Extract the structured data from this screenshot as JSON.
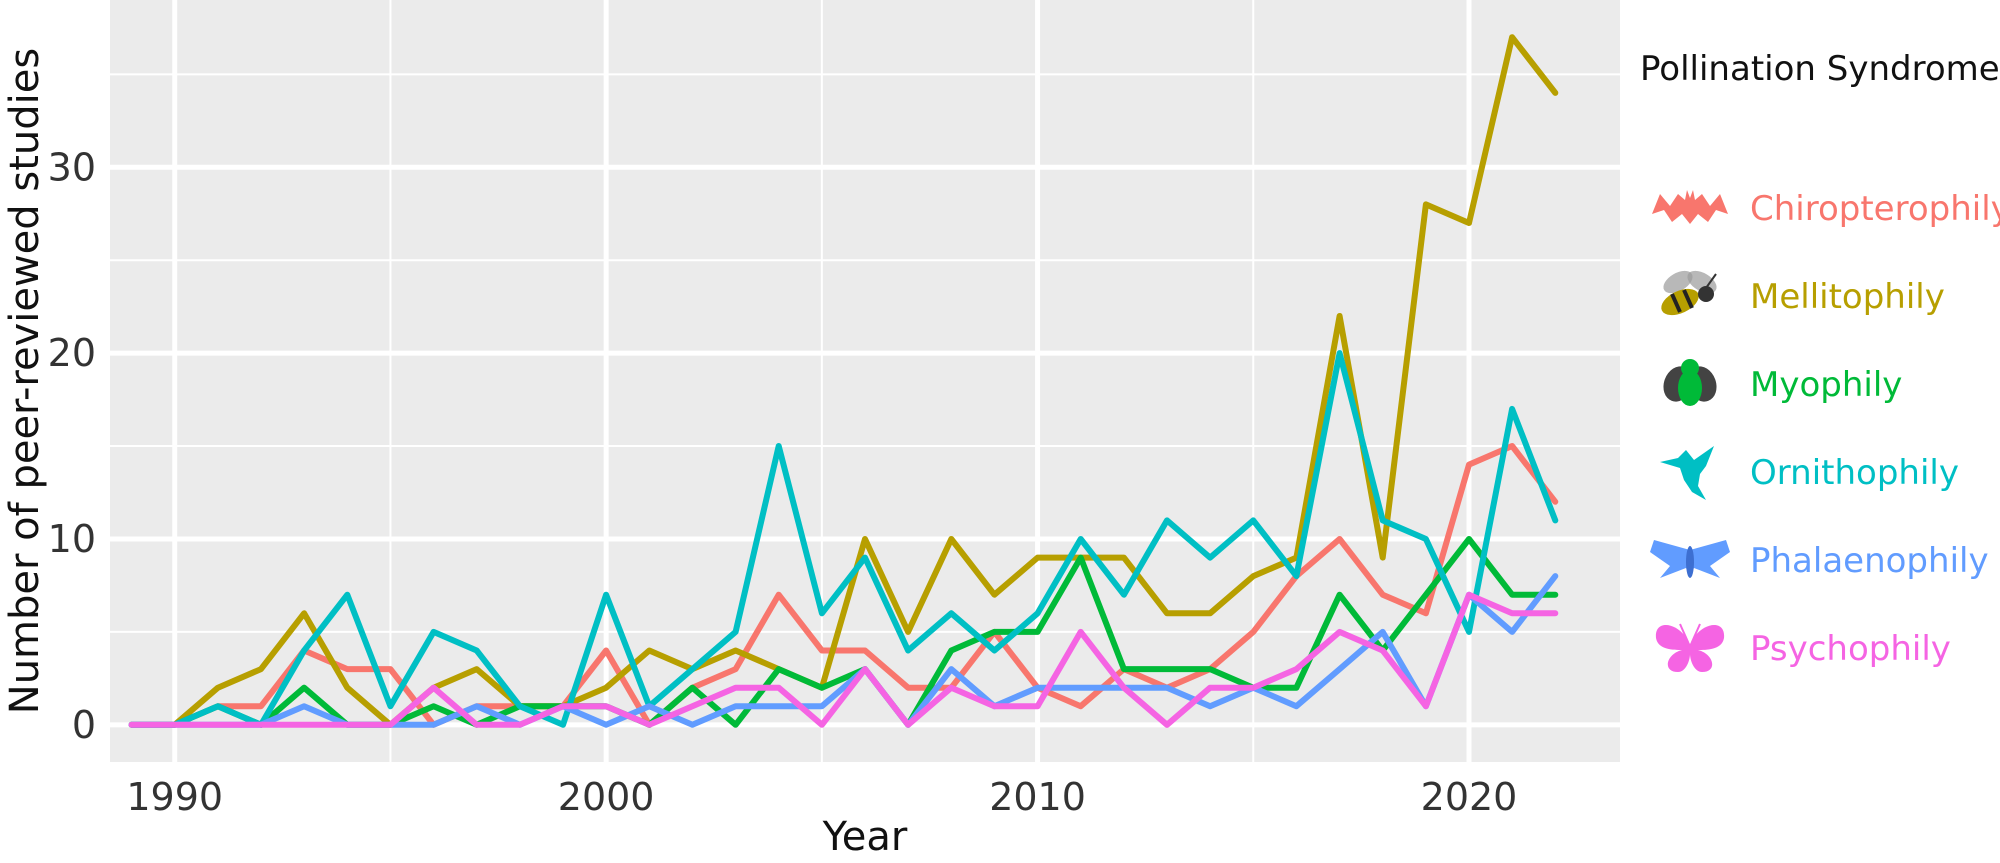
{
  "chart_data": {
    "type": "line",
    "title": "",
    "xlabel": "Year",
    "ylabel": "Number of peer-reviewed studies",
    "xlim": [
      1988.5,
      2023.5
    ],
    "ylim": [
      -2,
      39
    ],
    "x_ticks": [
      1990,
      2000,
      2010,
      2020
    ],
    "y_ticks": [
      0,
      10,
      20,
      30
    ],
    "grid": true,
    "legend_title": "Pollination Syndrome",
    "legend_position": "right",
    "x": [
      1989,
      1990,
      1991,
      1992,
      1993,
      1994,
      1995,
      1996,
      1997,
      1998,
      1999,
      2000,
      2001,
      2002,
      2003,
      2004,
      2005,
      2006,
      2007,
      2008,
      2009,
      2010,
      2011,
      2012,
      2013,
      2014,
      2015,
      2016,
      2017,
      2018,
      2019,
      2020,
      2021,
      2022
    ],
    "series": [
      {
        "name": "Chiropterophily",
        "color": "#F8766D",
        "icon": "bat-icon",
        "values": [
          0,
          0,
          1,
          1,
          4,
          3,
          3,
          0,
          1,
          1,
          1,
          4,
          0,
          2,
          3,
          7,
          4,
          4,
          2,
          2,
          5,
          2,
          1,
          3,
          2,
          3,
          5,
          8,
          10,
          7,
          6,
          14,
          15,
          12
        ]
      },
      {
        "name": "Mellitophily",
        "color": "#B79F00",
        "icon": "bee-icon",
        "values": [
          0,
          0,
          2,
          3,
          6,
          2,
          0,
          2,
          3,
          1,
          1,
          2,
          4,
          3,
          4,
          3,
          2,
          10,
          5,
          10,
          7,
          9,
          9,
          9,
          6,
          6,
          8,
          9,
          22,
          9,
          28,
          27,
          37,
          34
        ]
      },
      {
        "name": "Myophily",
        "color": "#00BA38",
        "icon": "fly-icon",
        "values": [
          0,
          0,
          1,
          0,
          2,
          0,
          0,
          1,
          0,
          1,
          1,
          1,
          0,
          2,
          0,
          3,
          2,
          3,
          0,
          4,
          5,
          5,
          9,
          3,
          3,
          3,
          2,
          2,
          7,
          4,
          7,
          10,
          7,
          7
        ]
      },
      {
        "name": "Ornithophily",
        "color": "#00BFC4",
        "icon": "hummingbird-icon",
        "values": [
          0,
          0,
          1,
          0,
          4,
          7,
          1,
          5,
          4,
          1,
          0,
          7,
          1,
          3,
          5,
          15,
          6,
          9,
          4,
          6,
          4,
          6,
          10,
          7,
          11,
          9,
          11,
          8,
          20,
          11,
          10,
          5,
          17,
          11
        ]
      },
      {
        "name": "Phalaenophily",
        "color": "#619CFF",
        "icon": "moth-icon",
        "values": [
          0,
          0,
          0,
          0,
          1,
          0,
          0,
          0,
          1,
          0,
          1,
          0,
          1,
          0,
          1,
          1,
          1,
          3,
          0,
          3,
          1,
          2,
          2,
          2,
          2,
          1,
          2,
          1,
          3,
          5,
          1,
          7,
          5,
          8
        ]
      },
      {
        "name": "Psychophily",
        "color": "#F564E3",
        "icon": "butterfly-icon",
        "values": [
          0,
          0,
          0,
          0,
          0,
          0,
          0,
          2,
          0,
          0,
          1,
          1,
          0,
          1,
          2,
          2,
          0,
          3,
          0,
          2,
          1,
          1,
          5,
          2,
          0,
          2,
          2,
          3,
          5,
          4,
          1,
          7,
          6,
          6
        ]
      }
    ]
  }
}
